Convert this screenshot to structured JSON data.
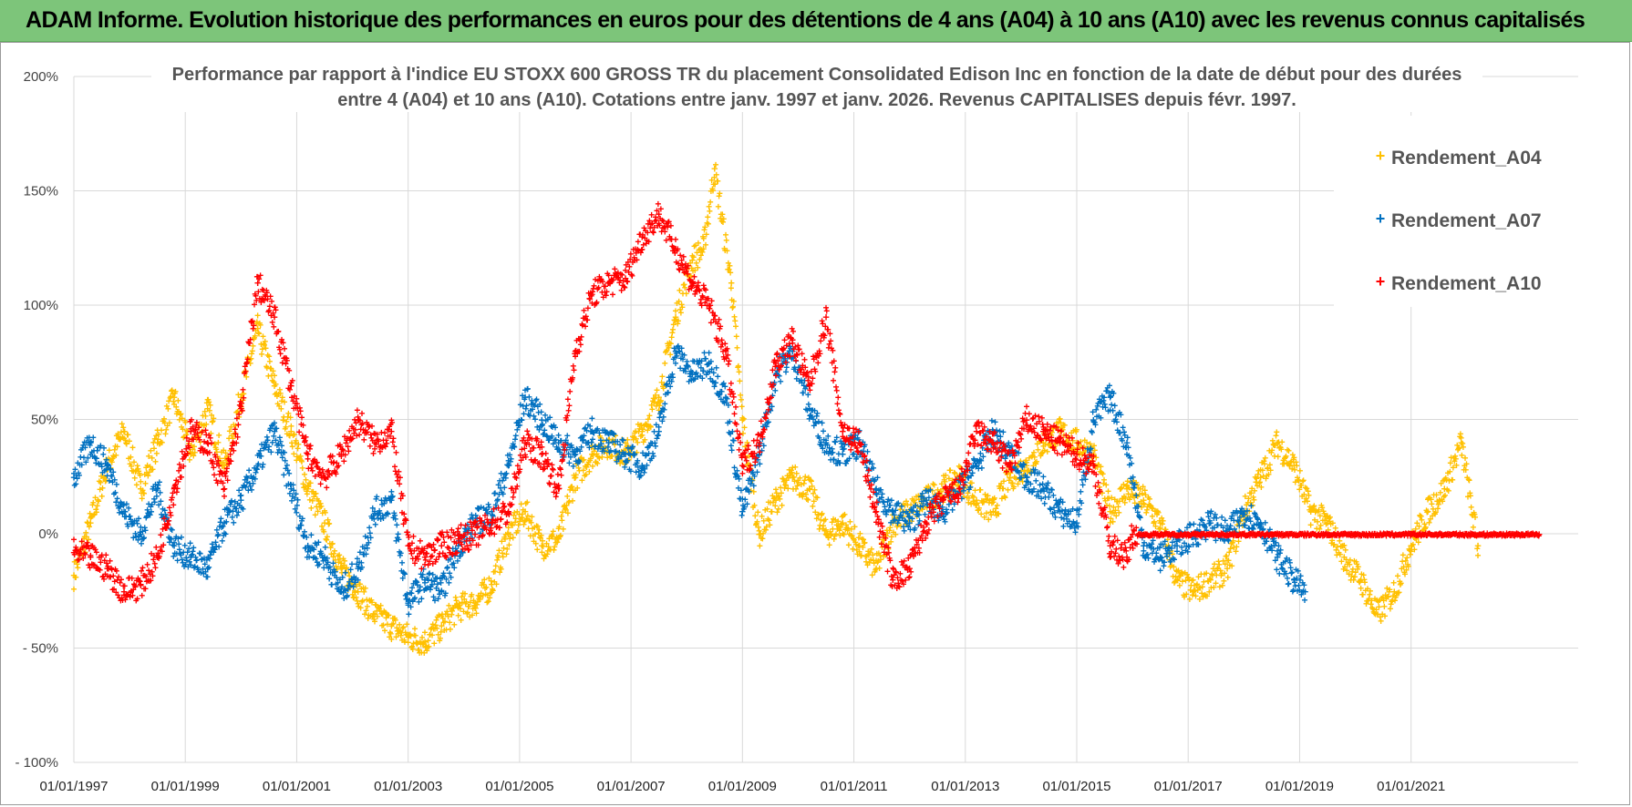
{
  "header": {
    "title": "ADAM Informe. Evolution historique des performances en euros pour des détentions de 4 ans (A04) à 10 ans (A10) avec les revenus connus capitalisés"
  },
  "colors": {
    "banner": "#7dc57a",
    "A04": "#ffc000",
    "A07": "#0070c0",
    "A10": "#ff0000",
    "grid": "#d9d9d9"
  },
  "chart_data": {
    "type": "scatter",
    "title_lines": [
      "Performance par rapport à l'indice EU STOXX 600 GROSS TR  du placement Consolidated Edison Inc en fonction de la date de début pour des durées",
      "entre 4 (A04) et 10 ans (A10).  Cotations entre janv. 1997 et janv. 2026. Revenus CAPITALISES depuis févr. 1997."
    ],
    "xlim": [
      1997,
      2024
    ],
    "ylim": [
      -100,
      200
    ],
    "y_ticks": [
      {
        "value": 200,
        "label": "200%"
      },
      {
        "value": 150,
        "label": "150%"
      },
      {
        "value": 100,
        "label": "100%"
      },
      {
        "value": 50,
        "label": "50%"
      },
      {
        "value": 0,
        "label": "0%"
      },
      {
        "value": -50,
        "label": "- 50%"
      },
      {
        "value": -100,
        "label": "- 100%"
      }
    ],
    "x_ticks": [
      {
        "value": 1997,
        "label": "01/01/1997"
      },
      {
        "value": 1999,
        "label": "01/01/1999"
      },
      {
        "value": 2001,
        "label": "01/01/2001"
      },
      {
        "value": 2003,
        "label": "01/01/2003"
      },
      {
        "value": 2005,
        "label": "01/01/2005"
      },
      {
        "value": 2007,
        "label": "01/01/2007"
      },
      {
        "value": 2009,
        "label": "01/01/2009"
      },
      {
        "value": 2011,
        "label": "01/01/2011"
      },
      {
        "value": 2013,
        "label": "01/01/2013"
      },
      {
        "value": 2015,
        "label": "01/01/2015"
      },
      {
        "value": 2017,
        "label": "01/01/2017"
      },
      {
        "value": 2019,
        "label": "01/01/2019"
      },
      {
        "value": 2021,
        "label": "01/01/2021"
      }
    ],
    "legend_position": "top-right",
    "series": [
      {
        "name": "Rendement_A04",
        "color": "#ffc000",
        "x": [
          1997.0,
          1997.3,
          1997.6,
          1997.9,
          1998.2,
          1998.5,
          1998.8,
          1999.1,
          1999.4,
          1999.7,
          2000.0,
          2000.3,
          2000.6,
          2000.9,
          2001.2,
          2001.5,
          2001.8,
          2002.1,
          2002.4,
          2002.7,
          2003.0,
          2003.3,
          2003.6,
          2003.9,
          2004.2,
          2004.5,
          2004.8,
          2005.1,
          2005.4,
          2005.7,
          2006.0,
          2006.3,
          2006.6,
          2006.9,
          2007.2,
          2007.5,
          2007.8,
          2008.1,
          2008.3,
          2008.5,
          2008.8,
          2009.0,
          2009.3,
          2009.6,
          2009.9,
          2010.2,
          2010.5,
          2010.8,
          2011.1,
          2011.4,
          2011.7,
          2012.0,
          2012.3,
          2012.6,
          2012.9,
          2013.2,
          2013.5,
          2013.8,
          2014.1,
          2014.4,
          2014.7,
          2015.0,
          2015.3,
          2015.6,
          2015.9,
          2016.2,
          2016.5,
          2016.8,
          2017.1,
          2017.4,
          2017.7,
          2018.0,
          2018.3,
          2018.6,
          2018.9,
          2019.2,
          2019.5,
          2019.8,
          2020.1,
          2020.4,
          2020.7,
          2021.0,
          2021.3,
          2021.6,
          2021.9,
          2022.2
        ],
        "y": [
          -18,
          5,
          30,
          45,
          20,
          40,
          60,
          35,
          55,
          30,
          60,
          90,
          65,
          45,
          20,
          5,
          -15,
          -25,
          -35,
          -40,
          -45,
          -47,
          -40,
          -32,
          -30,
          -22,
          0,
          10,
          -5,
          -2,
          25,
          35,
          40,
          35,
          45,
          60,
          95,
          120,
          125,
          160,
          110,
          50,
          0,
          15,
          25,
          20,
          0,
          5,
          -5,
          -15,
          5,
          10,
          15,
          20,
          25,
          15,
          10,
          25,
          30,
          40,
          45,
          40,
          35,
          10,
          20,
          15,
          5,
          -20,
          -25,
          -20,
          -15,
          10,
          25,
          40,
          30,
          10,
          5,
          -10,
          -20,
          -35,
          -25,
          -5,
          10,
          20,
          40,
          -5
        ]
      },
      {
        "name": "Rendement_A07",
        "color": "#0070c0",
        "x": [
          1997.0,
          1997.3,
          1997.6,
          1997.9,
          1998.2,
          1998.5,
          1998.8,
          1999.1,
          1999.4,
          1999.7,
          2000.0,
          2000.3,
          2000.6,
          2000.9,
          2001.2,
          2001.5,
          2001.8,
          2002.1,
          2002.4,
          2002.7,
          2003.0,
          2003.3,
          2003.6,
          2003.9,
          2004.2,
          2004.5,
          2004.8,
          2005.1,
          2005.4,
          2005.7,
          2006.0,
          2006.3,
          2006.6,
          2006.9,
          2007.2,
          2007.5,
          2007.8,
          2008.1,
          2008.4,
          2008.7,
          2009.0,
          2009.3,
          2009.6,
          2009.9,
          2010.2,
          2010.5,
          2010.8,
          2011.1,
          2011.4,
          2011.7,
          2012.0,
          2012.3,
          2012.6,
          2012.9,
          2013.2,
          2013.5,
          2013.8,
          2014.1,
          2014.4,
          2014.7,
          2015.0,
          2015.3,
          2015.6,
          2015.9,
          2016.2,
          2016.5,
          2016.8,
          2017.1,
          2017.4,
          2017.7,
          2018.0,
          2018.3,
          2018.6,
          2018.9,
          2019.1
        ],
        "y": [
          25,
          40,
          30,
          10,
          0,
          20,
          -5,
          -10,
          -15,
          5,
          15,
          30,
          45,
          20,
          -5,
          -10,
          -25,
          -15,
          10,
          15,
          -30,
          -20,
          -25,
          -5,
          5,
          10,
          30,
          60,
          50,
          40,
          35,
          45,
          40,
          35,
          30,
          45,
          80,
          70,
          75,
          60,
          10,
          35,
          70,
          80,
          55,
          40,
          35,
          40,
          20,
          10,
          5,
          15,
          10,
          20,
          30,
          45,
          35,
          25,
          20,
          10,
          5,
          50,
          60,
          40,
          -5,
          -10,
          -5,
          0,
          5,
          0,
          10,
          5,
          -10,
          -20,
          -25
        ]
      },
      {
        "name": "Rendement_A10",
        "color": "#ff0000",
        "x": [
          1997.0,
          1997.3,
          1997.6,
          1997.9,
          1998.2,
          1998.5,
          1998.8,
          1999.1,
          1999.4,
          1999.7,
          2000.0,
          2000.3,
          2000.6,
          2000.9,
          2001.2,
          2001.5,
          2001.8,
          2002.1,
          2002.4,
          2002.7,
          2003.0,
          2003.3,
          2003.6,
          2003.9,
          2004.2,
          2004.5,
          2004.8,
          2005.1,
          2005.4,
          2005.7,
          2006.0,
          2006.3,
          2006.6,
          2006.9,
          2007.2,
          2007.5,
          2007.8,
          2008.1,
          2008.4,
          2008.7,
          2009.0,
          2009.3,
          2009.6,
          2009.9,
          2010.2,
          2010.5,
          2010.8,
          2011.1,
          2011.4,
          2011.7,
          2012.0,
          2012.3,
          2012.6,
          2012.9,
          2013.2,
          2013.5,
          2013.8,
          2014.1,
          2014.4,
          2014.7,
          2015.0,
          2015.3,
          2015.6,
          2015.9,
          2016.0,
          2016.5,
          2017.0,
          2017.5,
          2018.0,
          2018.5,
          2019.0,
          2019.5,
          2020.0,
          2020.5,
          2021.0,
          2021.5,
          2022.0,
          2022.5,
          2023.0,
          2023.3
        ],
        "y": [
          -8,
          -10,
          -15,
          -25,
          -22,
          -10,
          20,
          45,
          40,
          20,
          55,
          110,
          95,
          65,
          35,
          25,
          35,
          50,
          40,
          45,
          -5,
          -10,
          -5,
          -2,
          0,
          5,
          10,
          40,
          35,
          20,
          80,
          105,
          110,
          112,
          130,
          140,
          125,
          110,
          100,
          80,
          30,
          40,
          75,
          85,
          65,
          95,
          45,
          40,
          10,
          -20,
          -15,
          5,
          15,
          20,
          45,
          40,
          30,
          50,
          45,
          40,
          35,
          30,
          -5,
          -10,
          0,
          0,
          0,
          0,
          0,
          0,
          0,
          0,
          0,
          0,
          0,
          0,
          0,
          0,
          0,
          0
        ]
      }
    ]
  }
}
